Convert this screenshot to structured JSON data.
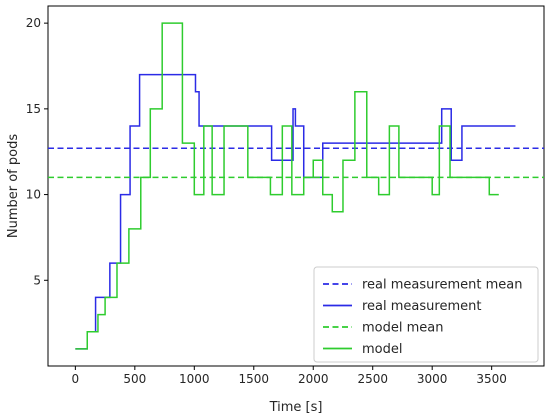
{
  "chart_data": {
    "type": "line",
    "xlabel": "Time [s]",
    "ylabel": "Number of pods",
    "xlim": [
      -230,
      3940
    ],
    "ylim": [
      0,
      21
    ],
    "xticks": [
      0,
      500,
      1000,
      1500,
      2000,
      2500,
      3000,
      3500
    ],
    "yticks": [
      5,
      10,
      15,
      20
    ],
    "grid": false,
    "legend_position": "lower-right",
    "series": [
      {
        "name": "real measurement mean",
        "style": "dashed",
        "color": "#2b2be6",
        "x": [
          -230,
          3940
        ],
        "y": [
          12.7,
          12.7
        ]
      },
      {
        "name": "real measurement",
        "style": "step",
        "color": "#2b2be6",
        "x": [
          0,
          100,
          170,
          290,
          380,
          460,
          540,
          1010,
          1020,
          1040,
          1650,
          1830,
          1850,
          1920,
          2080,
          3080,
          3160,
          3250,
          3700
        ],
        "y": [
          1,
          2,
          4,
          6,
          10,
          14,
          17,
          16,
          16,
          14,
          12,
          15,
          14,
          11,
          13,
          15,
          12,
          14,
          14
        ]
      },
      {
        "name": "model mean",
        "style": "dashed",
        "color": "#2ecc2e",
        "x": [
          -230,
          3940
        ],
        "y": [
          11,
          11
        ]
      },
      {
        "name": "model",
        "style": "step",
        "color": "#2ecc2e",
        "x": [
          0,
          100,
          190,
          250,
          350,
          450,
          550,
          630,
          730,
          900,
          1000,
          1080,
          1150,
          1250,
          1450,
          1640,
          1740,
          1820,
          1920,
          2000,
          2080,
          2160,
          2250,
          2350,
          2450,
          2550,
          2640,
          2720,
          2900,
          3000,
          3060,
          3150,
          3480,
          3560
        ],
        "y": [
          1,
          2,
          3,
          4,
          6,
          8,
          11,
          15,
          20,
          13,
          10,
          14,
          10,
          14,
          11,
          10,
          14,
          10,
          11,
          12,
          10,
          9,
          12,
          16,
          11,
          10,
          14,
          11,
          11,
          10,
          14,
          11,
          10,
          10
        ]
      }
    ],
    "legend": [
      {
        "label": "real measurement mean",
        "color": "#2b2be6",
        "style": "dashed"
      },
      {
        "label": "real measurement",
        "color": "#2b2be6",
        "style": "solid"
      },
      {
        "label": "model mean",
        "color": "#2ecc2e",
        "style": "dashed"
      },
      {
        "label": "model",
        "color": "#2ecc2e",
        "style": "solid"
      }
    ]
  }
}
